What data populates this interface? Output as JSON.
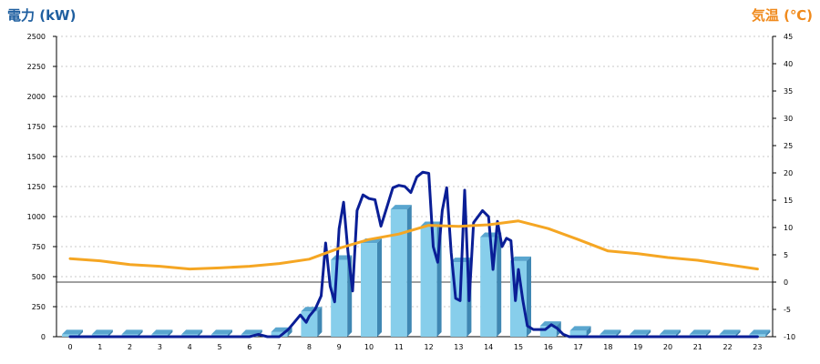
{
  "chart_data": {
    "type": "bar",
    "y_left_title": "電力 (kW)",
    "y_right_title": "気温 (℃)",
    "x": [
      0,
      1,
      2,
      3,
      4,
      5,
      6,
      7,
      8,
      9,
      10,
      11,
      12,
      13,
      14,
      15,
      16,
      17,
      18,
      19,
      20,
      21,
      22,
      23
    ],
    "x_tick_labels": [
      "0",
      "1",
      "2",
      "3",
      "4",
      "5",
      "6",
      "7",
      "8",
      "9",
      "10",
      "11",
      "12",
      "13",
      "14",
      "15",
      "16",
      "17",
      "18",
      "19",
      "20",
      "21",
      "22",
      "23"
    ],
    "y_left_ticks": [
      0,
      250,
      500,
      750,
      1000,
      1250,
      1500,
      1750,
      2000,
      2250,
      2500
    ],
    "y_left_lim": [
      0,
      2500
    ],
    "y_right_ticks": [
      -10,
      -5,
      0,
      5,
      10,
      15,
      20,
      25,
      30,
      35,
      40,
      45
    ],
    "y_right_lim": [
      -10,
      45
    ],
    "grid": true,
    "series": [
      {
        "kind": "bar",
        "axis": "left",
        "color": "#87ceeb",
        "values": [
          20,
          20,
          20,
          20,
          20,
          20,
          20,
          40,
          210,
          640,
          780,
          1060,
          920,
          620,
          830,
          630,
          90,
          50,
          20,
          20,
          20,
          20,
          20,
          20
        ]
      },
      {
        "kind": "line",
        "axis": "left",
        "color": "#0a1e96",
        "x": [
          0,
          1,
          2,
          3,
          4,
          5,
          6,
          6.3,
          6.6,
          7,
          7.3,
          7.5,
          7.7,
          7.9,
          8,
          8.2,
          8.4,
          8.55,
          8.7,
          8.85,
          9,
          9.15,
          9.3,
          9.45,
          9.6,
          9.8,
          10,
          10.2,
          10.4,
          10.6,
          10.8,
          11,
          11.2,
          11.4,
          11.6,
          11.8,
          12,
          12.15,
          12.3,
          12.45,
          12.6,
          12.75,
          12.9,
          13.05,
          13.2,
          13.35,
          13.5,
          13.65,
          13.8,
          14,
          14.15,
          14.3,
          14.45,
          14.6,
          14.75,
          14.9,
          15,
          15.15,
          15.3,
          15.5,
          15.7,
          15.9,
          16.1,
          16.3,
          16.5,
          16.7,
          16.9,
          17,
          18,
          19,
          20,
          21,
          22,
          23
        ],
        "values": [
          0,
          0,
          0,
          0,
          0,
          0,
          0,
          20,
          0,
          0,
          60,
          120,
          180,
          120,
          170,
          230,
          340,
          780,
          420,
          290,
          900,
          1120,
          700,
          380,
          1050,
          1180,
          1150,
          1140,
          920,
          1080,
          1240,
          1260,
          1250,
          1200,
          1330,
          1370,
          1360,
          750,
          620,
          1050,
          1240,
          700,
          320,
          300,
          1220,
          300,
          950,
          1000,
          1050,
          1000,
          560,
          960,
          750,
          820,
          800,
          300,
          560,
          300,
          90,
          60,
          60,
          60,
          100,
          70,
          20,
          0,
          0,
          0,
          0,
          0,
          0,
          0,
          0,
          0
        ]
      },
      {
        "kind": "line",
        "axis": "right",
        "color": "#f5a623",
        "x": [
          0,
          1,
          2,
          3,
          4,
          5,
          6,
          7,
          8,
          9,
          10,
          11,
          12,
          13,
          14,
          15,
          16,
          17,
          18,
          19,
          20,
          21,
          22,
          23
        ],
        "values": [
          4.3,
          3.9,
          3.2,
          2.9,
          2.4,
          2.6,
          2.9,
          3.4,
          4.2,
          6.2,
          7.8,
          8.8,
          10.4,
          10.2,
          10.5,
          11.2,
          9.8,
          7.8,
          5.7,
          5.2,
          4.5,
          4.0,
          3.2,
          2.4
        ]
      }
    ]
  }
}
